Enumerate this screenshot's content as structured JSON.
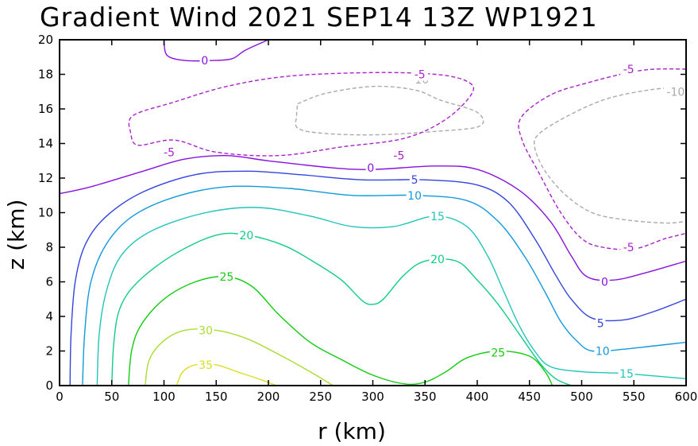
{
  "title": "Gradient Wind 2021 SEP14 13Z   WP1921",
  "chart_data": {
    "type": "contour",
    "title": "Gradient Wind 2021 SEP14 13Z   WP1921",
    "xlabel": "r (km)",
    "ylabel": "z (km)",
    "xlim": [
      0,
      600
    ],
    "ylim": [
      0,
      20
    ],
    "xticks": [
      0,
      50,
      100,
      150,
      200,
      250,
      300,
      350,
      400,
      450,
      500,
      550,
      600
    ],
    "yticks": [
      0,
      2,
      4,
      6,
      8,
      10,
      12,
      14,
      16,
      18,
      20
    ],
    "grid": false,
    "contours": [
      {
        "level": -10,
        "color": "#aaaaaa",
        "dashed": true,
        "paths": [
          [
            [
              228,
              16.3
            ],
            [
              255,
              16.9
            ],
            [
              300,
              17.3
            ],
            [
              340,
              17.1
            ],
            [
              365,
              16.5
            ],
            [
              400,
              15.8
            ],
            [
              402,
              15
            ],
            [
              360,
              14.7
            ],
            [
              300,
              14.5
            ],
            [
              250,
              14.6
            ],
            [
              228,
              14.9
            ],
            [
              227,
              15.6
            ],
            [
              228,
              16.3
            ]
          ],
          [
            [
              600,
              17.3
            ],
            [
              565,
              17.1
            ],
            [
              525,
              16.6
            ],
            [
              490,
              15.7
            ],
            [
              460,
              14.6
            ],
            [
              455,
              13.8
            ],
            [
              465,
              12.4
            ],
            [
              485,
              11
            ],
            [
              510,
              10
            ],
            [
              540,
              9.6
            ],
            [
              580,
              9.4
            ],
            [
              600,
              9.5
            ]
          ]
        ],
        "labels": [
          {
            "x": 345,
            "y": 17.7
          },
          {
            "x": 590,
            "y": 17.0
          }
        ]
      },
      {
        "level": -5,
        "color": "#aa22cc",
        "dashed": true,
        "paths": [
          [
            [
              600,
              18.3
            ],
            [
              570,
              18.3
            ],
            [
              545,
              18.1
            ],
            [
              505,
              17.5
            ],
            [
              470,
              16.8
            ],
            [
              442,
              15.5
            ],
            [
              443,
              14.2
            ],
            [
              460,
              12.2
            ],
            [
              480,
              10
            ],
            [
              500,
              8.5
            ],
            [
              520,
              8
            ],
            [
              550,
              7.9
            ],
            [
              580,
              8.5
            ],
            [
              600,
              8.8
            ]
          ],
          [
            [
              68,
              14.6
            ],
            [
              70,
              15.6
            ],
            [
              110,
              16.4
            ],
            [
              160,
              17.3
            ],
            [
              220,
              17.9
            ],
            [
              300,
              18.1
            ],
            [
              360,
              18
            ],
            [
              390,
              17.6
            ],
            [
              395,
              16.9
            ],
            [
              370,
              15.4
            ],
            [
              330,
              14.3
            ],
            [
              270,
              13.8
            ],
            [
              210,
              13.3
            ],
            [
              150,
              13.5
            ],
            [
              110,
              14.2
            ],
            [
              75,
              13.9
            ],
            [
              68,
              14.6
            ]
          ]
        ],
        "labels": [
          {
            "x": 545,
            "y": 18.3
          },
          {
            "x": 345,
            "y": 18.0
          },
          {
            "x": 325,
            "y": 13.3
          },
          {
            "x": 105,
            "y": 13.5
          },
          {
            "x": 545,
            "y": 8.0
          }
        ]
      },
      {
        "level": 0,
        "color": "#8811dd",
        "dashed": false,
        "paths": [
          [
            [
              0,
              11.1
            ],
            [
              30,
              11.5
            ],
            [
              80,
              12.4
            ],
            [
              120,
              13.1
            ],
            [
              160,
              13.3
            ],
            [
              200,
              13
            ],
            [
              260,
              12.6
            ],
            [
              300,
              12.5
            ],
            [
              360,
              12.7
            ],
            [
              400,
              12.5
            ],
            [
              440,
              11.3
            ],
            [
              470,
              9.5
            ],
            [
              490,
              7.5
            ],
            [
              505,
              6.3
            ],
            [
              530,
              6.1
            ],
            [
              560,
              6.5
            ],
            [
              600,
              7.2
            ]
          ],
          [
            [
              100,
              20
            ],
            [
              103,
              19.1
            ],
            [
              120,
              18.8
            ],
            [
              145,
              18.8
            ],
            [
              165,
              18.9
            ],
            [
              178,
              19.4
            ],
            [
              200,
              20
            ]
          ]
        ],
        "labels": [
          {
            "x": 298,
            "y": 12.6
          },
          {
            "x": 522,
            "y": 6.0
          },
          {
            "x": 139,
            "y": 18.8
          }
        ]
      },
      {
        "level": 5,
        "color": "#3344dd",
        "dashed": false,
        "paths": [
          [
            [
              10,
              0
            ],
            [
              11,
              3
            ],
            [
              15,
              6
            ],
            [
              25,
              8.2
            ],
            [
              45,
              9.8
            ],
            [
              80,
              11.2
            ],
            [
              130,
              12.2
            ],
            [
              180,
              12.4
            ],
            [
              230,
              12.2
            ],
            [
              290,
              11.9
            ],
            [
              350,
              11.9
            ],
            [
              400,
              11.6
            ],
            [
              430,
              10.6
            ],
            [
              455,
              8.5
            ],
            [
              475,
              6.4
            ],
            [
              490,
              5
            ],
            [
              510,
              3.9
            ],
            [
              540,
              3.8
            ],
            [
              570,
              4.3
            ],
            [
              600,
              5
            ]
          ]
        ],
        "labels": [
          {
            "x": 340,
            "y": 11.9
          },
          {
            "x": 518,
            "y": 3.6
          }
        ]
      },
      {
        "level": 10,
        "color": "#1199dd",
        "dashed": false,
        "paths": [
          [
            [
              22,
              0
            ],
            [
              24,
              3
            ],
            [
              30,
              6
            ],
            [
              45,
              8.2
            ],
            [
              70,
              9.8
            ],
            [
              110,
              10.9
            ],
            [
              160,
              11.5
            ],
            [
              220,
              11.4
            ],
            [
              280,
              11
            ],
            [
              340,
              11
            ],
            [
              390,
              10.7
            ],
            [
              420,
              9.5
            ],
            [
              445,
              7.5
            ],
            [
              465,
              5.4
            ],
            [
              480,
              3.7
            ],
            [
              495,
              2.6
            ],
            [
              510,
              2
            ],
            [
              540,
              2.1
            ],
            [
              570,
              2.3
            ],
            [
              600,
              2.5
            ]
          ]
        ],
        "labels": [
          {
            "x": 340,
            "y": 11.0
          },
          {
            "x": 520,
            "y": 2.0
          }
        ]
      },
      {
        "level": 15,
        "color": "#22c4bb",
        "dashed": false,
        "paths": [
          [
            [
              36,
              0
            ],
            [
              38,
              3
            ],
            [
              45,
              5.5
            ],
            [
              60,
              7.6
            ],
            [
              90,
              9
            ],
            [
              140,
              10
            ],
            [
              190,
              10.3
            ],
            [
              240,
              9.8
            ],
            [
              280,
              9.2
            ],
            [
              320,
              9.2
            ],
            [
              360,
              9.8
            ],
            [
              390,
              9.2
            ],
            [
              410,
              7.5
            ],
            [
              425,
              5.5
            ],
            [
              440,
              3.5
            ],
            [
              455,
              2
            ],
            [
              470,
              1.1
            ],
            [
              500,
              0.8
            ],
            [
              540,
              0.7
            ],
            [
              600,
              0.4
            ]
          ]
        ],
        "labels": [
          {
            "x": 362,
            "y": 9.8
          },
          {
            "x": 543,
            "y": 0.7
          }
        ]
      },
      {
        "level": 20,
        "color": "#11cc88",
        "dashed": false,
        "paths": [
          [
            [
              50,
              0
            ],
            [
              52,
              2.5
            ],
            [
              58,
              4.5
            ],
            [
              75,
              6
            ],
            [
              110,
              7.6
            ],
            [
              150,
              8.7
            ],
            [
              180,
              8.7
            ],
            [
              215,
              8.1
            ],
            [
              245,
              7.1
            ],
            [
              270,
              6.1
            ],
            [
              290,
              4.9
            ],
            [
              300,
              4.7
            ],
            [
              310,
              5
            ],
            [
              330,
              6.4
            ],
            [
              350,
              7.2
            ],
            [
              380,
              7.2
            ],
            [
              400,
              6.1
            ],
            [
              420,
              4.7
            ],
            [
              440,
              3
            ],
            [
              460,
              1.3
            ],
            [
              475,
              0.4
            ],
            [
              490,
              0
            ]
          ]
        ],
        "labels": [
          {
            "x": 179,
            "y": 8.7
          },
          {
            "x": 362,
            "y": 7.3
          }
        ]
      },
      {
        "level": 25,
        "color": "#11cc11",
        "dashed": false,
        "paths": [
          [
            [
              66,
              0
            ],
            [
              69,
              2
            ],
            [
              78,
              3.5
            ],
            [
              100,
              5
            ],
            [
              130,
              6
            ],
            [
              160,
              6.3
            ],
            [
              185,
              5.7
            ],
            [
              210,
              4.1
            ],
            [
              240,
              2.5
            ],
            [
              270,
              1.5
            ],
            [
              300,
              0.6
            ],
            [
              330,
              0.1
            ],
            [
              350,
              0.2
            ],
            [
              370,
              0.8
            ],
            [
              390,
              1.6
            ],
            [
              420,
              2
            ],
            [
              450,
              1.7
            ],
            [
              465,
              0.8
            ],
            [
              472,
              0
            ]
          ]
        ],
        "labels": [
          {
            "x": 160,
            "y": 6.3
          },
          {
            "x": 420,
            "y": 1.9
          }
        ]
      },
      {
        "level": 30,
        "color": "#aadd33",
        "dashed": false,
        "paths": [
          [
            [
              82,
              0
            ],
            [
              86,
              1.5
            ],
            [
              100,
              2.6
            ],
            [
              120,
              3.2
            ],
            [
              150,
              3.2
            ],
            [
              180,
              2.7
            ],
            [
              210,
              1.8
            ],
            [
              240,
              0.8
            ],
            [
              262,
              0
            ]
          ]
        ],
        "labels": [
          {
            "x": 140,
            "y": 3.2
          }
        ]
      },
      {
        "level": 35,
        "color": "#dddd22",
        "dashed": false,
        "paths": [
          [
            [
              112,
              0
            ],
            [
              118,
              0.8
            ],
            [
              130,
              1.2
            ],
            [
              150,
              1.2
            ],
            [
              170,
              0.8
            ],
            [
              190,
              0.4
            ],
            [
              208,
              0
            ]
          ]
        ],
        "labels": [
          {
            "x": 140,
            "y": 1.2
          }
        ]
      }
    ]
  }
}
